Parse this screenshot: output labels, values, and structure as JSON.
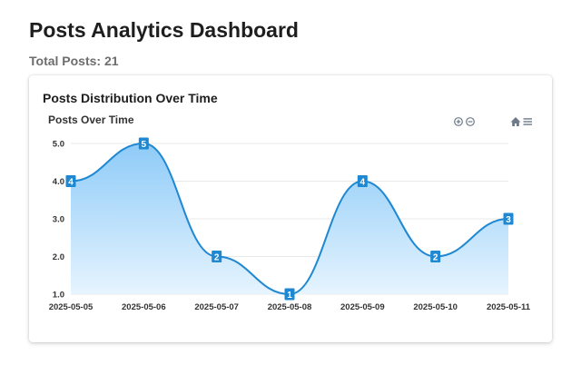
{
  "header": {
    "title": "Posts Analytics Dashboard",
    "total_label": "Total Posts:",
    "total_value": "21"
  },
  "card": {
    "title": "Posts Distribution Over Time"
  },
  "toolbar": {
    "icons": [
      "zoom-in-icon",
      "zoom-out-icon",
      "home-icon",
      "menu-icon"
    ]
  },
  "colors": {
    "line": "#1f88d2",
    "area_top": "#8ecbf8",
    "area_bottom": "#e6f4fe",
    "label_bg": "#1f88d2",
    "grid": "#e8e8e8",
    "icon": "#6c7a89"
  },
  "chart_data": {
    "type": "area",
    "title": "Posts Over Time",
    "xlabel": "",
    "ylabel": "",
    "categories": [
      "2025-05-05",
      "2025-05-06",
      "2025-05-07",
      "2025-05-08",
      "2025-05-09",
      "2025-05-10",
      "2025-05-11"
    ],
    "values": [
      4,
      5,
      2,
      1,
      4,
      2,
      3
    ],
    "ylim": [
      1,
      5
    ],
    "yticks": [
      "1.0",
      "2.0",
      "3.0",
      "4.0",
      "5.0"
    ],
    "grid": true,
    "curve": "smooth",
    "data_labels": true
  }
}
